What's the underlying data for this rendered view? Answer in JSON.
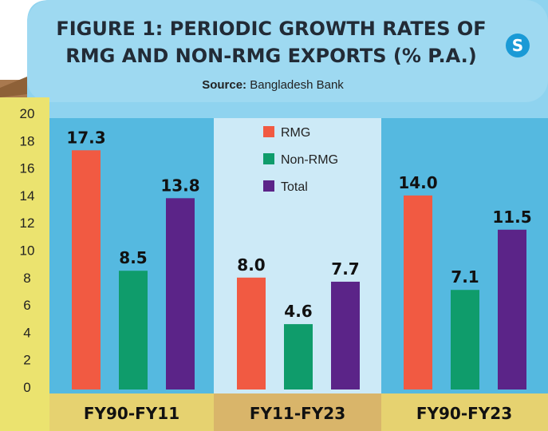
{
  "title_line1": "FIGURE 1: PERIODIC GROWTH RATES OF",
  "title_line2": "RMG AND NON-RMG EXPORTS (% P.A.)",
  "source_label": "Source:",
  "source_value": "Bangladesh Bank",
  "logo": {
    "icon": "publisher-logo-icon",
    "glyph": "S",
    "color": "#1a9ad6"
  },
  "colors": {
    "panel_blue": "#8fd3ef",
    "panel_blue_dark": "#55b9e0",
    "panel_blue_light": "#cdeaf7",
    "axis_yellow": "#ebe36f",
    "category_band": "#e6d270",
    "category_band_highlight": "#d9b56a"
  },
  "chart_data": {
    "type": "bar",
    "categories": [
      "FY90-FY11",
      "FY11-FY23",
      "FY90-FY23"
    ],
    "series": [
      {
        "name": "RMG",
        "values": [
          17.3,
          8.0,
          14.0
        ],
        "labels": [
          "17.3",
          "8.0",
          "14.0"
        ],
        "color": "#f15a42"
      },
      {
        "name": "Non-RMG",
        "values": [
          8.5,
          4.6,
          7.1
        ],
        "labels": [
          "8.5",
          "4.6",
          "7.1"
        ],
        "color": "#0f9c6b"
      },
      {
        "name": "Total",
        "values": [
          13.8,
          7.7,
          11.5
        ],
        "labels": [
          "13.8",
          "7.7",
          "11.5"
        ],
        "color": "#5b2488"
      }
    ],
    "ylim": [
      0,
      20
    ],
    "yticks": [
      "0",
      "2",
      "4",
      "6",
      "8",
      "10",
      "12",
      "14",
      "16",
      "18",
      "20"
    ],
    "xlabel": "",
    "ylabel": "",
    "grid": false,
    "legend_position": "top-center"
  }
}
